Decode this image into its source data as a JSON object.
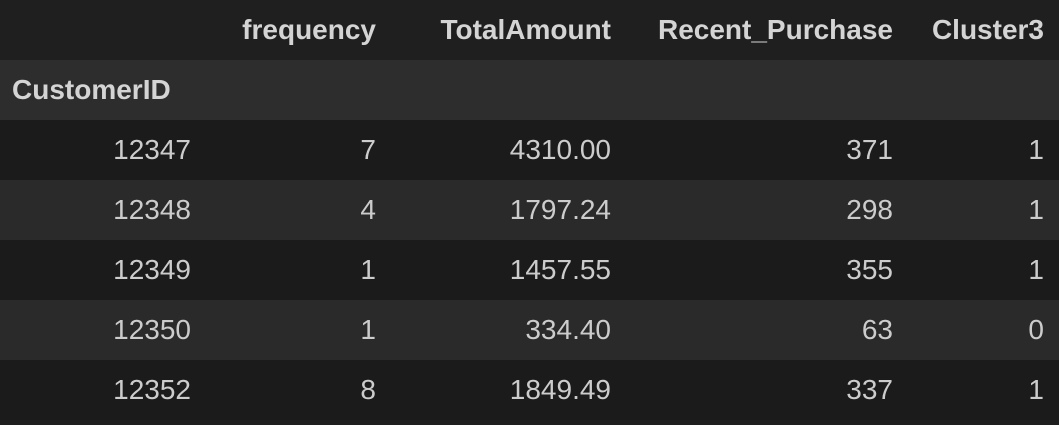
{
  "table": {
    "columns": [
      "",
      "frequency",
      "TotalAmount",
      "Recent_Purchase",
      "Cluster3"
    ],
    "index_name": "CustomerID",
    "rows": [
      {
        "index": "12347",
        "frequency": "7",
        "TotalAmount": "4310.00",
        "Recent_Purchase": "371",
        "Cluster3": "1"
      },
      {
        "index": "12348",
        "frequency": "4",
        "TotalAmount": "1797.24",
        "Recent_Purchase": "298",
        "Cluster3": "1"
      },
      {
        "index": "12349",
        "frequency": "1",
        "TotalAmount": "1457.55",
        "Recent_Purchase": "355",
        "Cluster3": "1"
      },
      {
        "index": "12350",
        "frequency": "1",
        "TotalAmount": "334.40",
        "Recent_Purchase": "63",
        "Cluster3": "0"
      },
      {
        "index": "12352",
        "frequency": "8",
        "TotalAmount": "1849.49",
        "Recent_Purchase": "337",
        "Cluster3": "1"
      }
    ]
  },
  "colors": {
    "background": "#1f1f1f",
    "index_header_row": "#2d2d2d",
    "row_odd": "#1b1b1b",
    "row_even": "#2a2a2a",
    "text": "#cccccc"
  }
}
